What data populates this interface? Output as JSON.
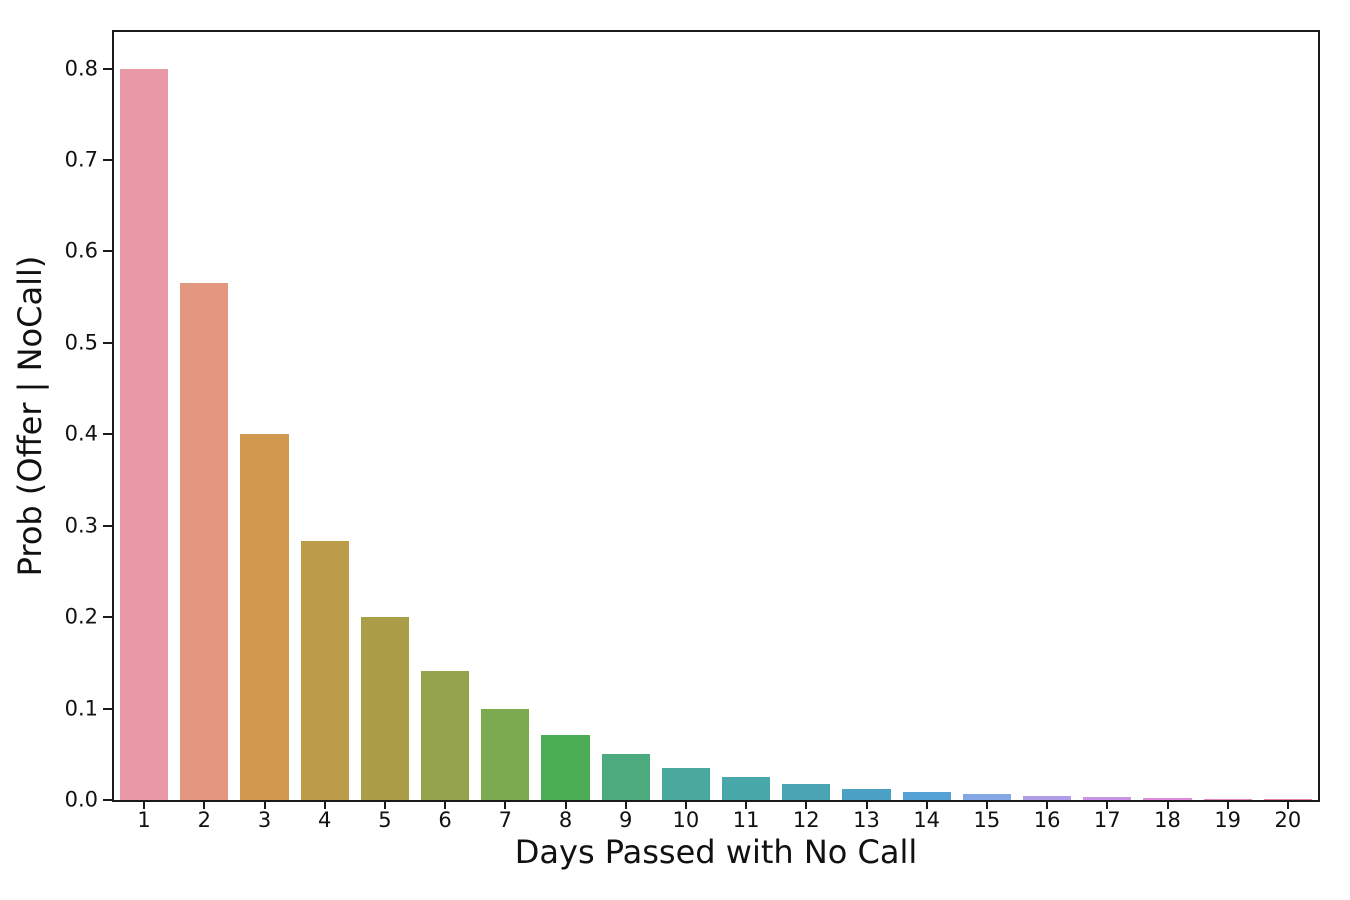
{
  "chart_data": {
    "type": "bar",
    "title": "",
    "xlabel": "Days Passed with No Call",
    "ylabel": "Prob (Offer | NoCall)",
    "categories": [
      "1",
      "2",
      "3",
      "4",
      "5",
      "6",
      "7",
      "8",
      "9",
      "10",
      "11",
      "12",
      "13",
      "14",
      "15",
      "16",
      "17",
      "18",
      "19",
      "20"
    ],
    "values": [
      0.8,
      0.5657,
      0.4,
      0.2828,
      0.2,
      0.1414,
      0.1,
      0.0707,
      0.05,
      0.0354,
      0.025,
      0.0177,
      0.0125,
      0.0088,
      0.0063,
      0.0044,
      0.0031,
      0.0022,
      0.0016,
      0.0011
    ],
    "bar_colors": [
      "#e898a6",
      "#e39680",
      "#d3984f",
      "#bd9c49",
      "#ab9e48",
      "#95a34c",
      "#7caa50",
      "#4bae55",
      "#4bab7f",
      "#48a99c",
      "#47a7a9",
      "#49a4b4",
      "#4ba0c5",
      "#55a3d6",
      "#84a8e6",
      "#ae9ee7",
      "#c795e3",
      "#e08dde",
      "#e389bd",
      "#e586a0"
    ],
    "ylim": [
      0,
      0.84
    ],
    "yticks": [
      0.0,
      0.1,
      0.2,
      0.3,
      0.4,
      0.5,
      0.6,
      0.7,
      0.8
    ],
    "ytick_labels": [
      "0.0",
      "0.1",
      "0.2",
      "0.3",
      "0.4",
      "0.5",
      "0.6",
      "0.7",
      "0.8"
    ],
    "bar_slot_fraction": 0.8,
    "grid": false,
    "legend": null,
    "spine_color": "#1a1a1a",
    "background_color": "#ffffff"
  }
}
